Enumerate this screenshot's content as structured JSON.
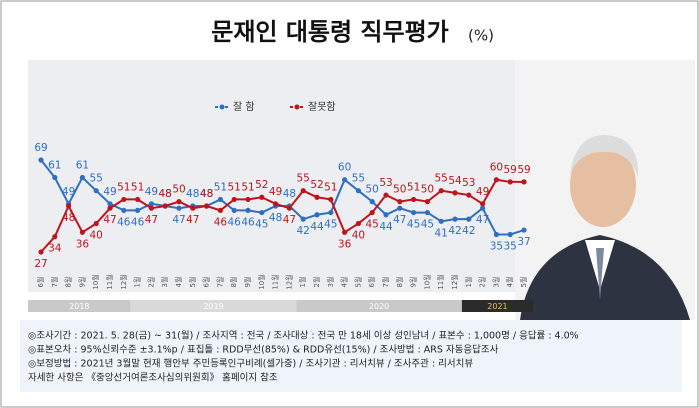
{
  "chart_data": {
    "type": "line",
    "title": "문재인 대통령 직무평가",
    "unit": "(%)",
    "categories": [
      "6월",
      "7월",
      "8월",
      "9월",
      "10월",
      "11월",
      "12월",
      "1월",
      "2월",
      "3월",
      "4월",
      "5월",
      "6월",
      "7월",
      "8월",
      "9월",
      "10월",
      "11월",
      "12월",
      "1월",
      "2월",
      "3월",
      "4월",
      "5월",
      "6월",
      "7월",
      "8월",
      "9월",
      "10월",
      "11월",
      "12월",
      "1월",
      "2월",
      "3월",
      "4월",
      "5월"
    ],
    "years": [
      "2018",
      "2019",
      "2020",
      "2021"
    ],
    "series": [
      {
        "name": "잘 함",
        "color": "#2f6fc1",
        "values": [
          69,
          61,
          49,
          61,
          55,
          49,
          46,
          46,
          49,
          48,
          47,
          48,
          48,
          51,
          46,
          46,
          45,
          48,
          48,
          42,
          44,
          45,
          60,
          55,
          50,
          44,
          47,
          45,
          45,
          41,
          42,
          42,
          47,
          35,
          35,
          37
        ]
      },
      {
        "name": "잘못함",
        "color": "#c0141c",
        "values": [
          27,
          34,
          48,
          36,
          40,
          47,
          51,
          51,
          47,
          48,
          50,
          47,
          48,
          46,
          51,
          51,
          52,
          49,
          47,
          55,
          52,
          51,
          36,
          40,
          45,
          53,
          50,
          51,
          50,
          55,
          54,
          53,
          49,
          60,
          59,
          59
        ]
      }
    ],
    "notes": [
      "◎조사기간 : 2021. 5. 28(금) ~ 31(월) / 조사지역 : 전국 / 조사대상 : 전국 만 18세 이상 성인남녀 / 표본수 : 1,000명 / 응답률 : 4.0%",
      "◎표본오차 : 95%신뢰수준 ±3.1%p / 표집틀 : RDD무선(85%) & RDD유선(15%) / 조사방법 : ARS 자동응답조사",
      "◎보정방법 : 2021년 3월말 현재 행안부 주민등록인구비례(셀가중) / 조사기관 : 리서치뷰 / 조사주관 : 리서치뷰",
      "자세한 사항은 《중앙선거여론조사심의위원회》 홈페이지 참조"
    ]
  }
}
